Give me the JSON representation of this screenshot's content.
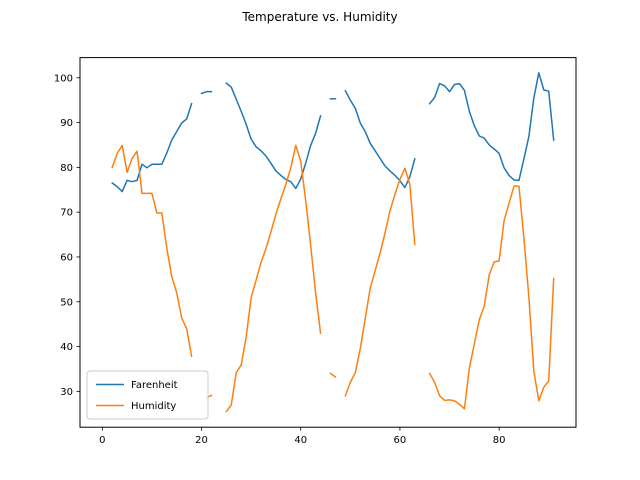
{
  "chart_data": {
    "type": "line",
    "title": "Temperature vs. Humidity",
    "xlabel": "",
    "ylabel": "",
    "xlim": [
      -4.5,
      95.5
    ],
    "ylim": [
      22,
      104.5
    ],
    "x_ticks": [
      0,
      20,
      40,
      60,
      80
    ],
    "y_ticks": [
      30,
      40,
      50,
      60,
      70,
      80,
      90,
      100
    ],
    "grid": false,
    "legend_placement": "lower-left",
    "series": [
      {
        "name": "Farenheit",
        "color": "#1f77b4",
        "x": [
          2,
          3,
          4,
          5,
          6,
          7,
          8,
          9,
          10,
          11,
          12,
          13,
          14,
          15,
          16,
          17,
          18,
          19,
          20,
          21,
          22,
          23,
          24,
          25,
          26,
          27,
          28,
          29,
          30,
          31,
          32,
          33,
          34,
          35,
          36,
          37,
          38,
          39,
          40,
          41,
          42,
          43,
          44,
          45,
          46,
          47,
          48,
          49,
          50,
          51,
          52,
          53,
          54,
          55,
          56,
          57,
          58,
          59,
          60,
          61,
          62,
          63,
          64,
          65,
          66,
          67,
          68,
          69,
          70,
          71,
          72,
          73,
          74,
          75,
          76,
          77,
          78,
          79,
          80,
          81,
          82,
          83,
          84,
          85,
          86,
          87,
          88,
          89,
          90,
          91
        ],
        "y": [
          76.5,
          75.7,
          74.6,
          77.1,
          76.8,
          77.1,
          80.7,
          79.9,
          80.7,
          80.7,
          80.7,
          83.2,
          86.1,
          88.0,
          89.9,
          90.8,
          94.2,
          null,
          96.5,
          96.9,
          96.9,
          null,
          null,
          98.8,
          97.9,
          95.2,
          92.5,
          89.6,
          86.3,
          84.6,
          83.7,
          82.5,
          80.9,
          79.2,
          78.2,
          77.3,
          76.8,
          75.3,
          77.4,
          80.9,
          84.9,
          87.6,
          91.5,
          null,
          95.3,
          95.3,
          null,
          97.1,
          95.0,
          93.2,
          89.9,
          88.0,
          85.4,
          83.7,
          82.0,
          80.3,
          79.2,
          78.2,
          77.0,
          75.5,
          77.9,
          81.9,
          null,
          null,
          94.2,
          95.6,
          98.7,
          98.2,
          96.9,
          98.5,
          98.7,
          97.2,
          92.5,
          89.3,
          87.0,
          86.5,
          85.0,
          84.1,
          83.1,
          79.9,
          78.2,
          77.2,
          77.1,
          81.9,
          86.9,
          95.5,
          101.1,
          97.3,
          97.0,
          86.1
        ]
      },
      {
        "name": "Humidity",
        "color": "#ff7f0e",
        "x": [
          2,
          3,
          4,
          5,
          6,
          7,
          8,
          9,
          10,
          11,
          12,
          13,
          14,
          15,
          16,
          17,
          18,
          19,
          20,
          21,
          22,
          23,
          24,
          25,
          26,
          27,
          28,
          29,
          30,
          31,
          32,
          33,
          34,
          35,
          36,
          37,
          38,
          39,
          40,
          41,
          42,
          43,
          44,
          45,
          46,
          47,
          48,
          49,
          50,
          51,
          52,
          53,
          54,
          55,
          56,
          57,
          58,
          59,
          60,
          61,
          62,
          63,
          64,
          65,
          66,
          67,
          68,
          69,
          70,
          71,
          72,
          73,
          74,
          75,
          76,
          77,
          78,
          79,
          80,
          81,
          82,
          83,
          84,
          85,
          86,
          87,
          88,
          89,
          90,
          91
        ],
        "y": [
          80.0,
          83.1,
          84.9,
          78.9,
          82.0,
          83.6,
          74.2,
          74.2,
          74.2,
          69.8,
          69.8,
          62.0,
          55.6,
          52.0,
          46.4,
          44.0,
          37.8,
          null,
          null,
          28.6,
          29.1,
          null,
          null,
          25.5,
          27.0,
          34.2,
          35.9,
          42.1,
          50.9,
          54.8,
          58.8,
          61.9,
          65.6,
          69.6,
          73.0,
          76.2,
          79.9,
          84.9,
          81.4,
          72.6,
          62.7,
          52.0,
          43.0,
          null,
          34.0,
          33.2,
          null,
          29.0,
          32.0,
          34.2,
          39.5,
          46.2,
          53.0,
          56.9,
          60.9,
          65.4,
          70.3,
          74.0,
          77.3,
          79.8,
          76.2,
          62.8,
          null,
          null,
          34.0,
          32.0,
          29.0,
          28.0,
          28.1,
          27.9,
          27.1,
          26.1,
          35.2,
          40.6,
          46.0,
          49.0,
          56.0,
          58.9,
          59.1,
          68.1,
          72.0,
          75.8,
          75.8,
          64.2,
          51.0,
          34.5,
          27.9,
          30.9,
          32.3,
          55.2
        ]
      }
    ]
  }
}
